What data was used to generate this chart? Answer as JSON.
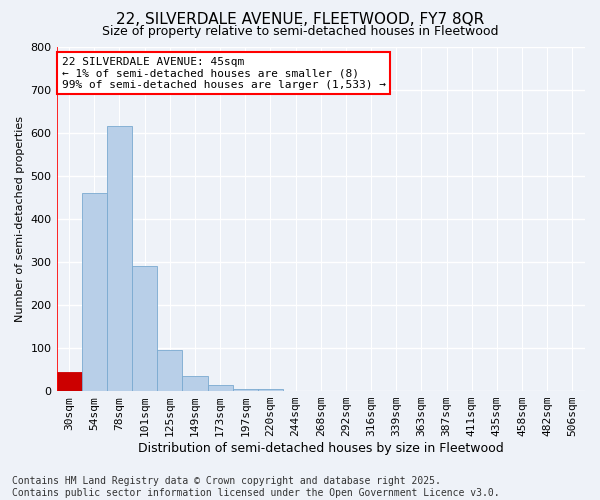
{
  "title": "22, SILVERDALE AVENUE, FLEETWOOD, FY7 8QR",
  "subtitle": "Size of property relative to semi-detached houses in Fleetwood",
  "xlabel": "Distribution of semi-detached houses by size in Fleetwood",
  "ylabel": "Number of semi-detached properties",
  "categories": [
    "30sqm",
    "54sqm",
    "78sqm",
    "101sqm",
    "125sqm",
    "149sqm",
    "173sqm",
    "197sqm",
    "220sqm",
    "244sqm",
    "268sqm",
    "292sqm",
    "316sqm",
    "339sqm",
    "363sqm",
    "387sqm",
    "411sqm",
    "435sqm",
    "458sqm",
    "482sqm",
    "506sqm"
  ],
  "values": [
    45,
    460,
    615,
    290,
    95,
    35,
    13,
    5,
    5,
    0,
    0,
    0,
    0,
    0,
    0,
    0,
    0,
    0,
    0,
    0,
    0
  ],
  "highlight_index": 0,
  "highlight_color": "#cc0000",
  "bar_color": "#b8cfe8",
  "bar_edge_color": "#7aaad0",
  "background_color": "#eef2f8",
  "grid_color": "#ffffff",
  "ylim": [
    0,
    800
  ],
  "yticks": [
    0,
    100,
    200,
    300,
    400,
    500,
    600,
    700,
    800
  ],
  "annotation_text": "22 SILVERDALE AVENUE: 45sqm\n← 1% of semi-detached houses are smaller (8)\n99% of semi-detached houses are larger (1,533) →",
  "footnote": "Contains HM Land Registry data © Crown copyright and database right 2025.\nContains public sector information licensed under the Open Government Licence v3.0.",
  "title_fontsize": 11,
  "subtitle_fontsize": 9,
  "ylabel_fontsize": 8,
  "xlabel_fontsize": 9,
  "annotation_fontsize": 8,
  "footnote_fontsize": 7,
  "tick_fontsize": 8
}
